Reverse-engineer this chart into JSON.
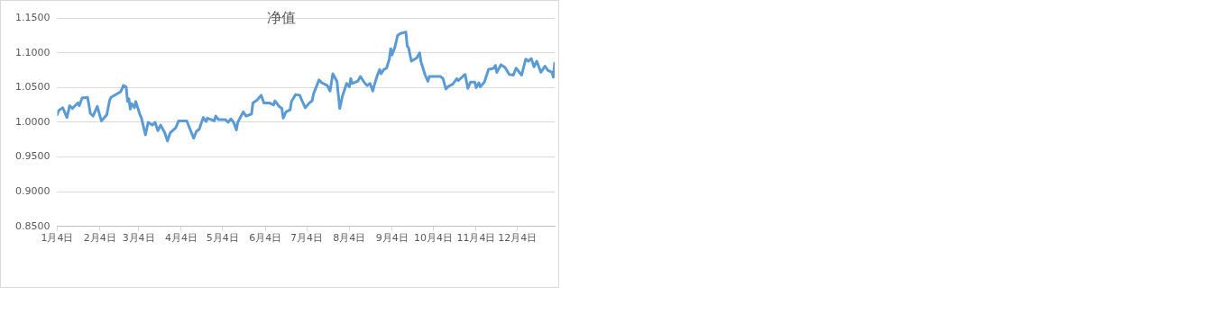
{
  "chart_data": {
    "type": "line",
    "title": "净值",
    "x": [
      "--01-04",
      "--01-05",
      "--01-08",
      "--01-11",
      "--01-13",
      "--01-15",
      "--01-19",
      "--01-20",
      "--01-22",
      "--01-26",
      "--01-27",
      "--01-28",
      "--01-30",
      "--02-02",
      "--02-05",
      "--02-09",
      "--02-11",
      "--02-12",
      "--02-19",
      "--02-21",
      "--02-23",
      "--02-24",
      "--02-25",
      "--02-26",
      "--02-27",
      "--03-01",
      "--03-02",
      "--03-05",
      "--03-06",
      "--03-09",
      "--03-11",
      "--03-14",
      "--03-16",
      "--03-18",
      "--03-20",
      "--03-23",
      "--03-25",
      "--03-27",
      "--03-31",
      "--04-02",
      "--04-07",
      "--04-08",
      "--04-13",
      "--04-15",
      "--04-17",
      "--04-20",
      "--04-22",
      "--04-23",
      "--04-28",
      "--04-29",
      "--05-01",
      "--05-06",
      "--05-08",
      "--05-10",
      "--05-12",
      "--05-14",
      "--05-15",
      "--05-19",
      "--05-21",
      "--05-25",
      "--05-26",
      "--05-29",
      "--06-01",
      "--06-03",
      "--06-07",
      "--06-10",
      "--06-11",
      "--06-14",
      "--06-16",
      "--06-17",
      "--06-19",
      "--06-22",
      "--06-23",
      "--06-26",
      "--06-29",
      "--06-30",
      "--07-03",
      "--07-06",
      "--07-08",
      "--07-09",
      "--07-13",
      "--07-15",
      "--07-19",
      "--07-21",
      "--07-23",
      "--07-26",
      "--07-28",
      "--07-30",
      "--08-02",
      "--08-04",
      "--08-05",
      "--08-06",
      "--08-10",
      "--08-12",
      "--08-15",
      "--08-17",
      "--08-19",
      "--08-21",
      "--08-22",
      "--08-24",
      "--08-26",
      "--08-27",
      "--08-29",
      "--08-31",
      "--09-02",
      "--09-03",
      "--09-04",
      "--09-06",
      "--09-08",
      "--09-10",
      "--09-14",
      "--09-15",
      "--09-16",
      "--09-18",
      "--09-22",
      "--09-24",
      "--09-25",
      "--09-28",
      "--09-30",
      "--10-01",
      "--10-09",
      "--10-11",
      "--10-13",
      "--10-15",
      "--10-18",
      "--10-21",
      "--10-22",
      "--10-27",
      "--10-29",
      "--10-31",
      "--11-03",
      "--11-04",
      "--11-06",
      "--11-07",
      "--11-10",
      "--11-13",
      "--11-17",
      "--11-18",
      "--11-19",
      "--11-22",
      "--11-25",
      "--11-28",
      "--12-01",
      "--12-03",
      "--12-07",
      "--12-10",
      "--12-12",
      "--12-14",
      "--12-16",
      "--12-18",
      "--12-21",
      "--12-24",
      "--12-26",
      "--12-29",
      "--12-30",
      "--12-31"
    ],
    "series": [
      {
        "color": "#5b9bd5",
        "values": [
          1.011,
          1.017,
          1.021,
          1.007,
          1.024,
          1.02,
          1.028,
          1.024,
          1.035,
          1.036,
          1.025,
          1.013,
          1.009,
          1.023,
          1.002,
          1.011,
          1.032,
          1.036,
          1.044,
          1.053,
          1.051,
          1.03,
          1.034,
          1.019,
          1.027,
          1.021,
          1.03,
          1.011,
          1.007,
          0.982,
          1.0,
          0.996,
          1.0,
          0.988,
          0.996,
          0.985,
          0.973,
          0.985,
          0.992,
          1.002,
          1.002,
          1.002,
          0.977,
          0.987,
          0.99,
          1.007,
          1.001,
          1.006,
          1.002,
          1.009,
          1.004,
          1.004,
          1.0,
          1.005,
          1.0,
          0.989,
          1.0,
          1.015,
          1.009,
          1.012,
          1.028,
          1.032,
          1.039,
          1.028,
          1.028,
          1.025,
          1.031,
          1.023,
          1.02,
          1.006,
          1.015,
          1.018,
          1.03,
          1.04,
          1.039,
          1.034,
          1.021,
          1.028,
          1.031,
          1.041,
          1.061,
          1.057,
          1.053,
          1.045,
          1.07,
          1.059,
          1.02,
          1.038,
          1.056,
          1.051,
          1.063,
          1.056,
          1.059,
          1.066,
          1.057,
          1.053,
          1.056,
          1.045,
          1.053,
          1.066,
          1.076,
          1.07,
          1.076,
          1.078,
          1.091,
          1.106,
          1.097,
          1.108,
          1.125,
          1.128,
          1.13,
          1.11,
          1.107,
          1.088,
          1.093,
          1.1,
          1.087,
          1.068,
          1.059,
          1.066,
          1.066,
          1.063,
          1.048,
          1.052,
          1.055,
          1.063,
          1.06,
          1.069,
          1.049,
          1.058,
          1.058,
          1.05,
          1.057,
          1.051,
          1.058,
          1.076,
          1.078,
          1.082,
          1.072,
          1.083,
          1.079,
          1.069,
          1.068,
          1.078,
          1.068,
          1.091,
          1.088,
          1.092,
          1.08,
          1.088,
          1.072,
          1.081,
          1.075,
          1.072,
          1.065,
          1.085
        ]
      }
    ],
    "xlim": [
      "--01-04",
      "--12-31"
    ],
    "xticks": [
      {
        "value": "--01-04",
        "label": "1月4日"
      },
      {
        "value": "--02-04",
        "label": "2月4日"
      },
      {
        "value": "--03-04",
        "label": "3月4日"
      },
      {
        "value": "--04-04",
        "label": "4月4日"
      },
      {
        "value": "--05-04",
        "label": "5月4日"
      },
      {
        "value": "--06-04",
        "label": "6月4日"
      },
      {
        "value": "--07-04",
        "label": "7月4日"
      },
      {
        "value": "--08-04",
        "label": "8月4日"
      },
      {
        "value": "--09-04",
        "label": "9月4日"
      },
      {
        "value": "--10-04",
        "label": "10月4日"
      },
      {
        "value": "--11-04",
        "label": "11月4日"
      },
      {
        "value": "--12-04",
        "label": "12月4日"
      }
    ],
    "ylim": [
      0.85,
      1.15
    ],
    "yticks": [
      {
        "value": 0.85,
        "label": "0.8500"
      },
      {
        "value": 0.9,
        "label": "0.9000"
      },
      {
        "value": 0.95,
        "label": "0.9500"
      },
      {
        "value": 1.0,
        "label": "1.0000"
      },
      {
        "value": 1.05,
        "label": "1.0500"
      },
      {
        "value": 1.1,
        "label": "1.1000"
      },
      {
        "value": 1.15,
        "label": "1.1500"
      }
    ],
    "grid": "y",
    "marker": "none",
    "line_style": "solid"
  }
}
